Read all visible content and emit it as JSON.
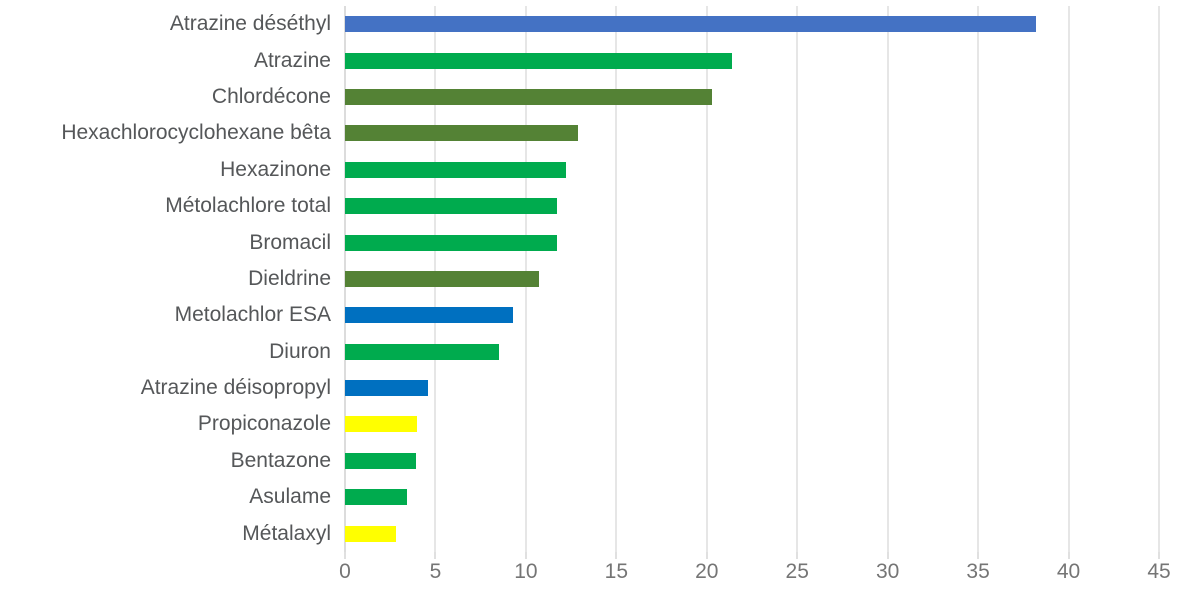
{
  "chart_data": {
    "type": "bar",
    "orientation": "horizontal",
    "title": "",
    "xlabel": "",
    "ylabel": "",
    "xlim": [
      0,
      45
    ],
    "x_ticks": [
      0,
      5,
      10,
      15,
      20,
      25,
      30,
      35,
      40,
      45
    ],
    "grid": true,
    "legend_position": "none",
    "categories": [
      "Atrazine déséthyl",
      "Atrazine",
      "Chlordécone",
      "Hexachlorocyclohexane bêta",
      "Hexazinone",
      "Métolachlore total",
      "Bromacil",
      "Dieldrine",
      "Metolachlor ESA",
      "Diuron",
      "Atrazine déisopropyl",
      "Propiconazole",
      "Bentazone",
      "Asulame",
      "Métalaxyl"
    ],
    "values": [
      38.2,
      21.4,
      20.3,
      12.9,
      12.2,
      11.7,
      11.7,
      10.7,
      9.3,
      8.5,
      4.6,
      4.0,
      3.9,
      3.4,
      2.8
    ],
    "bar_colors": [
      "#4472C4",
      "#00AB4E",
      "#548235",
      "#548235",
      "#00AB4E",
      "#00AB4E",
      "#00AB4E",
      "#548235",
      "#0070C0",
      "#00AB4E",
      "#0070C0",
      "#FFFF00",
      "#00AB4E",
      "#00AB4E",
      "#FFFF00"
    ]
  },
  "style_colors": {
    "background": "#ffffff",
    "gridline": "#e6e6e6",
    "category_label_text": "#555759",
    "axis_tick_text": "#757575",
    "series_blue": "#4472C4",
    "series_green": "#00AB4E",
    "series_olive": "#548235",
    "series_bright_blue": "#0070C0",
    "series_yellow": "#FFFF00"
  }
}
